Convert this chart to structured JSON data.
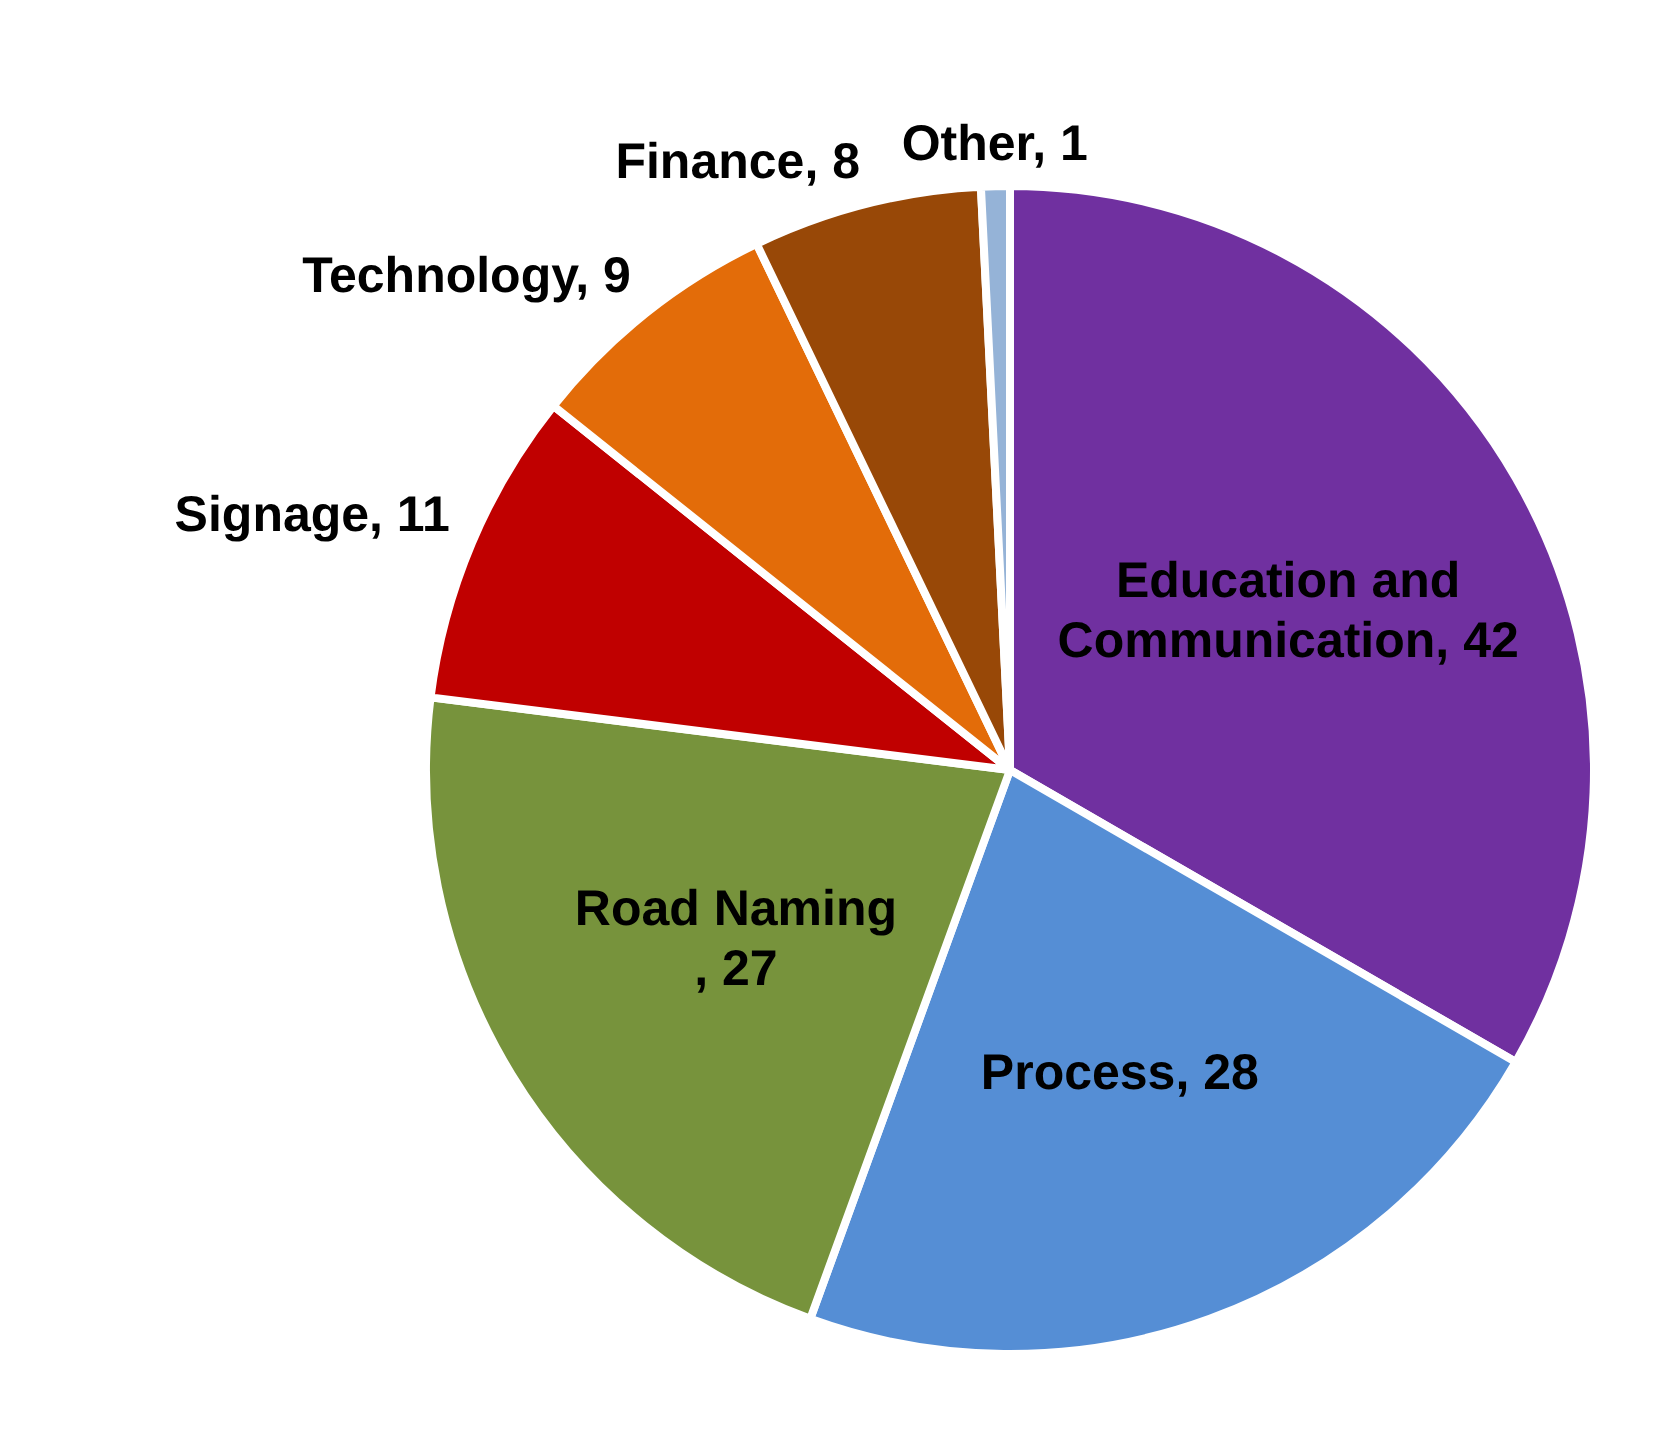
{
  "chart_data": {
    "type": "pie",
    "categories": [
      "Education and Communication",
      "Process",
      "Road Naming",
      "Signage",
      "Technology",
      "Finance",
      "Other"
    ],
    "values": [
      42,
      28,
      27,
      11,
      9,
      8,
      1
    ],
    "value_labels": [
      ", 42",
      ", 28",
      ", 27",
      ", 11",
      ", 9",
      ", 8",
      ", 1"
    ],
    "colors": [
      "#7030a0",
      "#558ed5",
      "#77933c",
      "#c00000",
      "#e36c09",
      "#984807",
      "#95b3d7"
    ]
  }
}
